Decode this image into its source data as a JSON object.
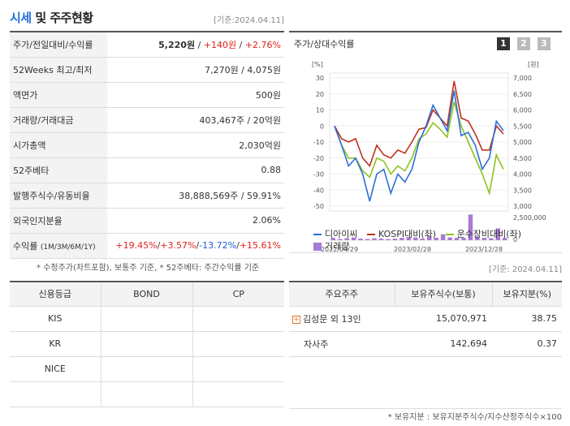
{
  "header": {
    "title_accent": "시세",
    "title_rest": " 및 주주현황",
    "base_date": "[기준:2024.04.11]"
  },
  "quote": {
    "rows": [
      {
        "label": "주가/전일대비/수익률"
      },
      {
        "label": "52Weeks 최고/최저",
        "value": "7,270원 / 4,075원"
      },
      {
        "label": "액면가",
        "value": "500원"
      },
      {
        "label": "거래량/거래대금",
        "value": "403,467주 / 20억원"
      },
      {
        "label": "시가총액",
        "value": "2,030억원"
      },
      {
        "label": "52주베타",
        "value": "0.88"
      },
      {
        "label": "발행주식수/유동비율",
        "value": "38,888,569주 / 59.91%"
      },
      {
        "label": "외국인지분율",
        "value": "2.06%"
      },
      {
        "label": "수익률",
        "label_sub": "(1M/3M/6M/1Y)"
      }
    ],
    "price": "5,220원",
    "change": "+140원",
    "change_pct": "+2.76%",
    "returns": [
      "+19.45%",
      "+3.57%",
      "-13.72%",
      "+15.61%"
    ],
    "note": "* 수정주가(차트포함), 보통주 기준, * 52주베타: 주간수익률 기준"
  },
  "chart_box": {
    "title": "주가/상대수익률",
    "pages": [
      "1",
      "2",
      "3"
    ],
    "legend": [
      "디아이씨",
      "KOSPI대비(좌)",
      "운수장비대비(좌)",
      "거래량"
    ],
    "colors": {
      "stock": "#2b6fd6",
      "kospi": "#c0311f",
      "sector": "#8fc31f",
      "volume": "#a97ad6"
    }
  },
  "chart_data": {
    "type": "line",
    "left_axis": {
      "unit": "[%]",
      "ticks": [
        30,
        20,
        10,
        0,
        -10,
        -20,
        -30,
        -40,
        -50
      ],
      "range": [
        -50,
        35
      ]
    },
    "right_axis": {
      "unit": "[원]",
      "ticks": [
        "7,000",
        "6,500",
        "6,000",
        "5,500",
        "5,000",
        "4,500",
        "4,000",
        "3,500",
        "3,000"
      ],
      "range": [
        3000,
        7200
      ]
    },
    "volume_axis": {
      "ticks": [
        "2,500,000",
        "0"
      ],
      "max": 2500000
    },
    "x_ticks": [
      "2022/04/29",
      "2023/02/28",
      "2023/12/28"
    ],
    "series": [
      {
        "name": "디아이씨",
        "values": [
          0,
          -12,
          -25,
          -20,
          -30,
          -47,
          -30,
          -27,
          -42,
          -30,
          -35,
          -27,
          -10,
          0,
          13,
          5,
          -3,
          22,
          -6,
          -4,
          -12,
          -27,
          -20,
          3,
          -3
        ]
      },
      {
        "name": "KOSPI대비(좌)",
        "values": [
          0,
          -8,
          -10,
          -8,
          -20,
          -25,
          -12,
          -18,
          -20,
          -15,
          -17,
          -10,
          -2,
          -1,
          10,
          5,
          0,
          28,
          5,
          3,
          -5,
          -15,
          -15,
          0,
          -5
        ]
      },
      {
        "name": "운수장비대비(좌)",
        "values": [
          0,
          -12,
          -20,
          -20,
          -28,
          -32,
          -20,
          -22,
          -30,
          -25,
          -28,
          -20,
          -8,
          -5,
          2,
          -2,
          -7,
          15,
          0,
          -10,
          -20,
          -30,
          -42,
          -18,
          -27
        ]
      }
    ],
    "volume": [
      0.12,
      0.06,
      0.1,
      0.14,
      0.08,
      0.06,
      0.1,
      0.08,
      0.06,
      0.08,
      0.12,
      0.16,
      0.14,
      0.08,
      0.2,
      0.12,
      0.3,
      0.14,
      0.12,
      0.12,
      1.3,
      0.18,
      0.12,
      0.1,
      0.6,
      0.12
    ]
  },
  "credit": {
    "headers": [
      "신용등급",
      "BOND",
      "CP"
    ],
    "rows": [
      "KIS",
      "KR",
      "NICE",
      ""
    ]
  },
  "holders": {
    "base_date": "[기준: 2024.04.11]",
    "headers": [
      "주요주주",
      "보유주식수(보통)",
      "보유지분(%)"
    ],
    "rows": [
      {
        "name": "김성문 외 13인",
        "shares": "15,070,971",
        "pct": "38.75"
      },
      {
        "name": "자사주",
        "shares": "142,694",
        "pct": "0.37"
      }
    ],
    "note": "* 보유지분 : 보유지분주식수/지수산정주식수×100"
  }
}
